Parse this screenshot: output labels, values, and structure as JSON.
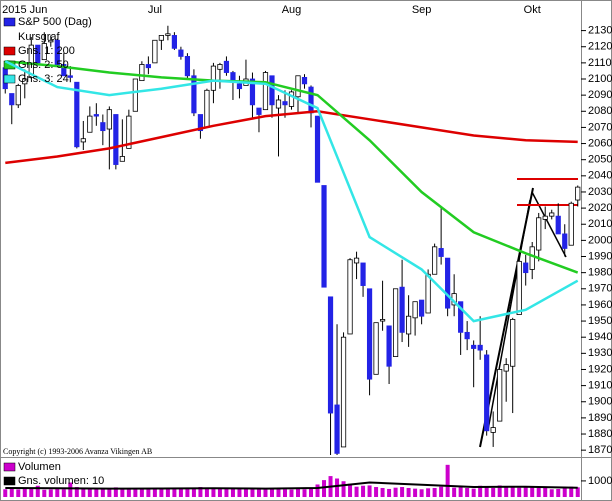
{
  "chart_data": [
    {
      "type": "candlestick",
      "name": "S&P 500 (Dag)",
      "subtitle": "Kursgraf",
      "annotation": "Copyright (c) 1993-2006 Avanza Vikingen AB",
      "categories": [
        null,
        null,
        null,
        "2015 Jun",
        null,
        null,
        null,
        null,
        null,
        null,
        null,
        null,
        null,
        null,
        null,
        null,
        null,
        null,
        null,
        null,
        null,
        null,
        null,
        "Jul",
        null,
        null,
        null,
        null,
        null,
        null,
        null,
        null,
        null,
        null,
        null,
        null,
        null,
        null,
        null,
        null,
        null,
        null,
        null,
        null,
        "Aug",
        null,
        null,
        null,
        null,
        null,
        null,
        null,
        null,
        null,
        null,
        null,
        null,
        null,
        null,
        null,
        null,
        null,
        null,
        null,
        "Sep",
        null,
        null,
        null,
        null,
        null,
        null,
        null,
        null,
        null,
        null,
        null,
        null,
        null,
        null,
        null,
        null,
        "Okt",
        null,
        null,
        null,
        null,
        null,
        null,
        null
      ],
      "ohlc": [
        [
          2107,
          2107,
          2091,
          2094
        ],
        [
          2091,
          2091,
          2072,
          2084
        ],
        [
          2084,
          2097,
          2082,
          2096
        ],
        [
          2097,
          2106,
          2088,
          2100
        ],
        [
          2101,
          2126,
          2100,
          2121
        ],
        [
          2121,
          2121,
          2109,
          2110
        ],
        [
          2112,
          2129,
          2112,
          2122
        ],
        [
          2123,
          2127,
          2120,
          2124
        ],
        [
          2124,
          2125,
          2108,
          2108
        ],
        [
          2109,
          2116,
          2102,
          2102
        ],
        [
          2102,
          2108,
          2098,
          2101
        ],
        [
          2098,
          2098,
          2057,
          2058
        ],
        [
          2061,
          2074,
          2056,
          2063
        ],
        [
          2067,
          2083,
          2067,
          2077
        ],
        [
          2078,
          2085,
          2071,
          2077
        ],
        [
          2073,
          2078,
          2059,
          2068
        ],
        [
          2069,
          2083,
          2044,
          2081
        ],
        [
          2078,
          2078,
          2044,
          2047
        ],
        [
          2049,
          2075,
          2049,
          2052
        ],
        [
          2057,
          2081,
          2057,
          2077
        ],
        [
          2080,
          2100,
          2080,
          2100
        ],
        [
          2099,
          2111,
          2099,
          2109
        ],
        [
          2109,
          2114,
          2103,
          2107
        ],
        [
          2110,
          2124,
          2110,
          2124
        ],
        [
          2124,
          2127,
          2118,
          2127
        ],
        [
          2127,
          2133,
          2124,
          2128
        ],
        [
          2127,
          2129,
          2118,
          2119
        ],
        [
          2118,
          2120,
          2112,
          2114
        ],
        [
          2114,
          2116,
          2100,
          2102
        ],
        [
          2102,
          2106,
          2077,
          2079
        ],
        [
          2078,
          2078,
          2063,
          2068
        ],
        [
          2070,
          2094,
          2070,
          2093
        ],
        [
          2093,
          2110,
          2085,
          2108
        ],
        [
          2106,
          2110,
          2094,
          2109
        ],
        [
          2111,
          2114,
          2102,
          2104
        ],
        [
          2104,
          2105,
          2087,
          2098
        ],
        [
          2097,
          2102,
          2088,
          2094
        ],
        [
          2096,
          2112,
          2096,
          2100
        ],
        [
          2100,
          2104,
          2075,
          2084
        ],
        [
          2082,
          2082,
          2067,
          2078
        ],
        [
          2081,
          2105,
          2081,
          2104
        ],
        [
          2102,
          2102,
          2076,
          2084
        ],
        [
          2082,
          2090,
          2052,
          2087
        ],
        [
          2086,
          2093,
          2076,
          2084
        ],
        [
          2083,
          2093,
          2081,
          2092
        ],
        [
          2089,
          2102,
          2079,
          2102
        ],
        [
          2101,
          2103,
          2094,
          2097
        ],
        [
          2095,
          2096,
          2070,
          2079
        ],
        [
          2077,
          2077,
          2036,
          2036
        ],
        [
          2034,
          2034,
          1971,
          1971
        ],
        [
          1965,
          1965,
          1867,
          1893
        ],
        [
          1898,
          1948,
          1867,
          1868
        ],
        [
          1872,
          1943,
          1872,
          1940
        ],
        [
          1942,
          1989,
          1942,
          1988
        ],
        [
          1986,
          1993,
          1976,
          1989
        ],
        [
          1986,
          1986,
          1965,
          1972
        ],
        [
          1970,
          1970,
          1904,
          1914
        ],
        [
          1917,
          1948,
          1917,
          1949
        ],
        [
          1950,
          1975,
          1944,
          1951
        ],
        [
          1947,
          1947,
          1911,
          1922
        ],
        [
          1928,
          1970,
          1928,
          1970
        ],
        [
          1971,
          1988,
          1937,
          1943
        ],
        [
          1942,
          1966,
          1934,
          1953
        ],
        [
          1952,
          1962,
          1941,
          1962
        ],
        [
          1963,
          1963,
          1948,
          1953
        ],
        [
          1955,
          1982,
          1955,
          1979
        ],
        [
          1979,
          1998,
          1979,
          1996
        ],
        [
          1995,
          2021,
          1985,
          1990
        ],
        [
          1989,
          1989,
          1953,
          1958
        ],
        [
          1960,
          1979,
          1953,
          1967
        ],
        [
          1962,
          1962,
          1929,
          1943
        ],
        [
          1943,
          1950,
          1932,
          1939
        ],
        [
          1935,
          1938,
          1909,
          1933
        ],
        [
          1935,
          1953,
          1926,
          1932
        ],
        [
          1929,
          1932,
          1879,
          1882
        ],
        [
          1881,
          1894,
          1872,
          1884
        ],
        [
          1888,
          1920,
          1888,
          1920
        ],
        [
          1919,
          1927,
          1900,
          1923
        ],
        [
          1922,
          1952,
          1893,
          1951
        ],
        [
          1954,
          1990,
          1954,
          1987
        ],
        [
          1986,
          1991,
          1972,
          1980
        ],
        [
          1982,
          1999,
          1976,
          1996
        ],
        [
          1994,
          2017,
          1987,
          2014
        ],
        [
          2013,
          2021,
          2007,
          2015
        ],
        [
          2015,
          2019,
          2013,
          2017
        ],
        [
          2015,
          2023,
          2004,
          2004
        ],
        [
          2004,
          2010,
          1990,
          1995
        ],
        [
          1997,
          2024,
          1997,
          2023
        ],
        [
          2025,
          2034,
          2021,
          2033
        ]
      ],
      "up_color": "#ffffff",
      "down_color": "#2323e6",
      "series": [
        {
          "name": "Gns. 1: 200",
          "color": "#dd0000",
          "x": [
            0,
            8,
            16,
            24,
            32,
            40,
            48,
            56,
            64,
            72,
            80,
            88
          ],
          "values": [
            2048,
            2052,
            2057,
            2064,
            2071,
            2077,
            2080,
            2075,
            2070,
            2065,
            2062,
            2061
          ]
        },
        {
          "name": "Gns. 2: 50",
          "color": "#22cc22",
          "x": [
            0,
            8,
            16,
            24,
            32,
            40,
            48,
            56,
            64,
            72,
            80,
            88
          ],
          "values": [
            2111,
            2108,
            2104,
            2101,
            2099,
            2098,
            2090,
            2062,
            2030,
            2005,
            1992,
            1980
          ]
        },
        {
          "name": "Gns. 3: 24",
          "color": "#33e6e6",
          "x": [
            0,
            8,
            16,
            24,
            32,
            40,
            48,
            56,
            64,
            72,
            80,
            88
          ],
          "values": [
            2111,
            2095,
            2090,
            2094,
            2099,
            2097,
            2082,
            2002,
            1982,
            1950,
            1957,
            1975
          ]
        }
      ],
      "ylim": [
        1867,
        2144
      ],
      "yticks": [
        1870,
        1880,
        1890,
        1900,
        1910,
        1920,
        1930,
        1940,
        1950,
        1960,
        1970,
        1980,
        1990,
        2000,
        2010,
        2020,
        2030,
        2040,
        2050,
        2060,
        2070,
        2080,
        2090,
        2100,
        2110,
        2120,
        2130
      ]
    },
    {
      "type": "bar",
      "name": "Volumen",
      "color": "#cc00cc",
      "values": [
        480,
        520,
        470,
        500,
        560,
        700,
        450,
        470,
        500,
        480,
        900,
        620,
        580,
        540,
        470,
        480,
        560,
        600,
        540,
        520,
        560,
        480,
        470,
        500,
        520,
        560,
        490,
        520,
        560,
        580,
        620,
        560,
        540,
        520,
        580,
        500,
        520,
        560,
        540,
        500,
        480,
        540,
        580,
        480,
        460,
        500,
        480,
        540,
        780,
        1050,
        1300,
        1150,
        980,
        820,
        640,
        700,
        720,
        620,
        560,
        500,
        580,
        620,
        560,
        520,
        480,
        540,
        560,
        640,
        2000,
        580,
        620,
        560,
        520,
        700,
        660,
        560,
        720,
        600,
        620,
        580,
        640,
        600,
        560,
        600,
        480,
        500,
        560,
        640,
        600
      ],
      "series": [
        {
          "name": "Gns. volumen: 10",
          "color": "#000000",
          "x": [
            0,
            8,
            16,
            24,
            32,
            40,
            48,
            56,
            64,
            72,
            80,
            88
          ],
          "values": [
            560,
            540,
            520,
            530,
            540,
            520,
            560,
            900,
            760,
            620,
            640,
            580
          ]
        }
      ],
      "ylim": [
        0,
        2300
      ],
      "yticks": [
        1000
      ]
    }
  ]
}
